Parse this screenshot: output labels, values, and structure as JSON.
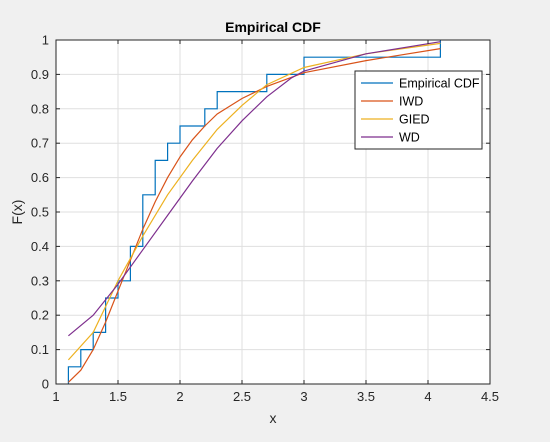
{
  "chart_data": {
    "type": "line",
    "title": "Empirical CDF",
    "xlabel": "x",
    "ylabel": "F(x)",
    "xlim": [
      1,
      4.5
    ],
    "ylim": [
      0,
      1
    ],
    "x_ticks": [
      1,
      1.5,
      2,
      2.5,
      3,
      3.5,
      4,
      4.5
    ],
    "x_tick_labels": [
      "1",
      "1.5",
      "2",
      "2.5",
      "3",
      "3.5",
      "4",
      "4.5"
    ],
    "y_ticks": [
      0,
      0.1,
      0.2,
      0.3,
      0.4,
      0.5,
      0.6,
      0.7,
      0.8,
      0.9,
      1
    ],
    "y_tick_labels": [
      "0",
      "0.1",
      "0.2",
      "0.3",
      "0.4",
      "0.5",
      "0.6",
      "0.7",
      "0.8",
      "0.9",
      "1"
    ],
    "grid": true,
    "legend_position": "top-right",
    "series": [
      {
        "name": "Empirical CDF",
        "style": "step",
        "color": "#0072bd",
        "points": [
          [
            1.1,
            0
          ],
          [
            1.1,
            0.05
          ],
          [
            1.2,
            0.05
          ],
          [
            1.2,
            0.1
          ],
          [
            1.3,
            0.1
          ],
          [
            1.3,
            0.15
          ],
          [
            1.4,
            0.15
          ],
          [
            1.4,
            0.25
          ],
          [
            1.5,
            0.25
          ],
          [
            1.5,
            0.3
          ],
          [
            1.6,
            0.3
          ],
          [
            1.6,
            0.4
          ],
          [
            1.7,
            0.4
          ],
          [
            1.7,
            0.55
          ],
          [
            1.8,
            0.55
          ],
          [
            1.8,
            0.65
          ],
          [
            1.9,
            0.65
          ],
          [
            1.9,
            0.7
          ],
          [
            2.0,
            0.7
          ],
          [
            2.0,
            0.75
          ],
          [
            2.2,
            0.75
          ],
          [
            2.2,
            0.8
          ],
          [
            2.3,
            0.8
          ],
          [
            2.3,
            0.85
          ],
          [
            2.7,
            0.85
          ],
          [
            2.7,
            0.9
          ],
          [
            3.0,
            0.9
          ],
          [
            3.0,
            0.95
          ],
          [
            4.1,
            0.95
          ],
          [
            4.1,
            1.0
          ]
        ]
      },
      {
        "name": "IWD",
        "style": "line",
        "color": "#d95319",
        "points": [
          [
            1.1,
            0.005
          ],
          [
            1.2,
            0.04
          ],
          [
            1.3,
            0.1
          ],
          [
            1.4,
            0.18
          ],
          [
            1.5,
            0.27
          ],
          [
            1.6,
            0.36
          ],
          [
            1.7,
            0.45
          ],
          [
            1.8,
            0.53
          ],
          [
            1.9,
            0.6
          ],
          [
            2.0,
            0.66
          ],
          [
            2.1,
            0.71
          ],
          [
            2.2,
            0.75
          ],
          [
            2.3,
            0.785
          ],
          [
            2.5,
            0.83
          ],
          [
            2.7,
            0.865
          ],
          [
            3.0,
            0.905
          ],
          [
            3.5,
            0.94
          ],
          [
            4.1,
            0.975
          ]
        ]
      },
      {
        "name": "GIED",
        "style": "line",
        "color": "#edb120",
        "points": [
          [
            1.1,
            0.07
          ],
          [
            1.3,
            0.15
          ],
          [
            1.5,
            0.3
          ],
          [
            1.7,
            0.43
          ],
          [
            1.9,
            0.55
          ],
          [
            2.1,
            0.65
          ],
          [
            2.3,
            0.74
          ],
          [
            2.5,
            0.81
          ],
          [
            2.7,
            0.87
          ],
          [
            3.0,
            0.92
          ],
          [
            3.5,
            0.96
          ],
          [
            4.1,
            0.99
          ]
        ]
      },
      {
        "name": "WD",
        "style": "line",
        "color": "#7e2f8e",
        "points": [
          [
            1.1,
            0.14
          ],
          [
            1.3,
            0.2
          ],
          [
            1.5,
            0.29
          ],
          [
            1.7,
            0.39
          ],
          [
            1.9,
            0.49
          ],
          [
            2.1,
            0.59
          ],
          [
            2.3,
            0.685
          ],
          [
            2.5,
            0.765
          ],
          [
            2.7,
            0.835
          ],
          [
            2.9,
            0.89
          ],
          [
            3.0,
            0.91
          ],
          [
            3.5,
            0.96
          ],
          [
            4.1,
            0.995
          ]
        ]
      }
    ]
  }
}
